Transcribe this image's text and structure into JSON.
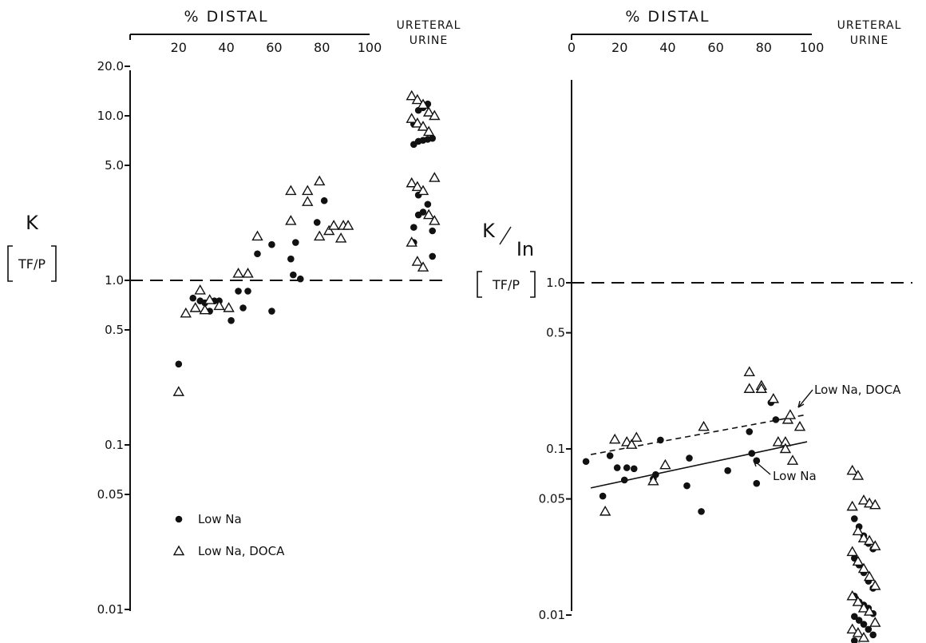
{
  "chart_data": [
    {
      "type": "scatter",
      "title": "",
      "top_axis_title": "% DISTAL",
      "ureteral_column_label": [
        "URETERAL",
        "URINE"
      ],
      "ylabel": "K",
      "ylabel_sub": "TF/P",
      "yscale": "log",
      "ylim": [
        0.01,
        20.0
      ],
      "xlim": [
        0,
        100
      ],
      "x_ticks": [
        20,
        40,
        60,
        80,
        100
      ],
      "y_ticks": [
        {
          "value": 20.0,
          "label": "20.0"
        },
        {
          "value": 10.0,
          "label": "10.0"
        },
        {
          "value": 5.0,
          "label": "5.0"
        },
        {
          "value": 1.0,
          "label": "1.0"
        },
        {
          "value": 0.5,
          "label": "0.5"
        },
        {
          "value": 0.1,
          "label": "0.1"
        },
        {
          "value": 0.05,
          "label": "0.05"
        },
        {
          "value": 0.01,
          "label": "0.01"
        }
      ],
      "reference_line": 1.0,
      "legend": [
        {
          "marker": "dot",
          "label": "Low  Na"
        },
        {
          "marker": "triangle",
          "label": "Low  Na,  DOCA"
        }
      ],
      "series": [
        {
          "name": "Low  Na",
          "marker": "dot",
          "points": [
            [
              20,
              0.31
            ],
            [
              26,
              0.78
            ],
            [
              29,
              0.75
            ],
            [
              31,
              0.73
            ],
            [
              33,
              0.65
            ],
            [
              35,
              0.75
            ],
            [
              37,
              0.75
            ],
            [
              42,
              0.57
            ],
            [
              45,
              0.86
            ],
            [
              47,
              0.68
            ],
            [
              49,
              0.86
            ],
            [
              53,
              1.45
            ],
            [
              59,
              1.65
            ],
            [
              59,
              0.65
            ],
            [
              67,
              1.35
            ],
            [
              68,
              1.08
            ],
            [
              69,
              1.7
            ],
            [
              71,
              1.02
            ],
            [
              78,
              2.25
            ],
            [
              81,
              3.05
            ]
          ],
          "ureteral": [
            6.7,
            7.0,
            7.1,
            7.2,
            7.3,
            8.9,
            10.8,
            11.2,
            11.8,
            2.0,
            2.1,
            2.5,
            2.6,
            2.9,
            1.4,
            1.7,
            3.3
          ]
        },
        {
          "name": "Low  Na,  DOCA",
          "marker": "triangle",
          "points": [
            [
              20,
              0.21
            ],
            [
              23,
              0.63
            ],
            [
              27,
              0.68
            ],
            [
              29,
              0.87
            ],
            [
              31,
              0.66
            ],
            [
              33,
              0.76
            ],
            [
              37,
              0.7
            ],
            [
              41,
              0.68
            ],
            [
              45,
              1.1
            ],
            [
              49,
              1.1
            ],
            [
              53,
              1.85
            ],
            [
              67,
              3.5
            ],
            [
              67,
              2.3
            ],
            [
              74,
              3.5
            ],
            [
              74,
              3.0
            ],
            [
              79,
              4.0
            ],
            [
              79,
              1.85
            ],
            [
              83,
              2.0
            ],
            [
              85,
              2.15
            ],
            [
              88,
              1.8
            ],
            [
              89,
              2.15
            ],
            [
              91,
              2.15
            ]
          ],
          "ureteral": [
            13.2,
            12.5,
            11.7,
            10.5,
            10.0,
            9.6,
            9.0,
            8.6,
            8.0,
            4.2,
            3.9,
            3.7,
            3.5,
            2.5,
            2.3,
            1.7,
            1.3,
            1.2
          ]
        }
      ]
    },
    {
      "type": "scatter",
      "title": "",
      "top_axis_title": "% DISTAL",
      "ureteral_column_label": [
        "URETERAL",
        "URINE"
      ],
      "ylabel": "K/In",
      "ylabel_main": "K",
      "ylabel_denominator": "In",
      "ylabel_sub": "TF/P",
      "yscale": "log",
      "ylim": [
        0.01,
        2.0
      ],
      "xlim": [
        0,
        100
      ],
      "x_ticks": [
        0,
        20,
        40,
        60,
        80,
        100
      ],
      "y_ticks": [
        {
          "value": 1.0,
          "label": "1.0"
        },
        {
          "value": 0.5,
          "label": "0.5"
        },
        {
          "value": 0.1,
          "label": "0.1"
        },
        {
          "value": 0.05,
          "label": "0.05"
        },
        {
          "value": 0.01,
          "label": "0.01"
        }
      ],
      "reference_line": 1.0,
      "fit_lines": [
        {
          "series": "Low  Na,  DOCA",
          "style": "dashed",
          "from": [
            0,
            0.088
          ],
          "to": [
            100,
            0.163
          ]
        },
        {
          "series": "Low  Na",
          "style": "solid",
          "from": [
            0,
            0.055
          ],
          "to": [
            100,
            0.112
          ]
        }
      ],
      "annotations": [
        {
          "text": "Low  Na,  DOCA",
          "points_to": "dashed regression line"
        },
        {
          "text": "Low  Na",
          "points_to": "solid regression line"
        }
      ],
      "series": [
        {
          "name": "Low  Na",
          "marker": "dot",
          "points": [
            [
              6,
              0.084
            ],
            [
              13,
              0.052
            ],
            [
              16,
              0.091
            ],
            [
              19,
              0.077
            ],
            [
              22,
              0.065
            ],
            [
              23,
              0.077
            ],
            [
              26,
              0.076
            ],
            [
              34,
              0.066
            ],
            [
              35,
              0.07
            ],
            [
              37,
              0.113
            ],
            [
              48,
              0.06
            ],
            [
              49,
              0.088
            ],
            [
              54,
              0.042
            ],
            [
              65,
              0.074
            ],
            [
              74,
              0.127
            ],
            [
              75,
              0.094
            ],
            [
              77,
              0.085
            ],
            [
              77,
              0.062
            ],
            [
              83,
              0.19
            ],
            [
              85,
              0.15
            ]
          ],
          "ureteral": [
            0.038,
            0.034,
            0.03,
            0.027,
            0.025,
            0.022,
            0.02,
            0.018,
            0.016,
            0.0145,
            0.013,
            0.012,
            0.0115,
            0.011,
            0.0102,
            0.0098,
            0.0093,
            0.0088,
            0.0082,
            0.0076,
            0.007,
            0.0065
          ]
        },
        {
          "name": "Low  Na,  DOCA",
          "marker": "triangle",
          "points": [
            [
              14,
              0.042
            ],
            [
              18,
              0.114
            ],
            [
              23,
              0.11
            ],
            [
              25,
              0.106
            ],
            [
              27,
              0.117
            ],
            [
              34,
              0.064
            ],
            [
              39,
              0.08
            ],
            [
              55,
              0.136
            ],
            [
              74,
              0.29
            ],
            [
              74,
              0.23
            ],
            [
              79,
              0.24
            ],
            [
              79,
              0.23
            ],
            [
              84,
              0.2
            ],
            [
              86,
              0.11
            ],
            [
              89,
              0.11
            ],
            [
              89,
              0.1
            ],
            [
              90,
              0.15
            ],
            [
              91,
              0.16
            ],
            [
              92,
              0.085
            ],
            [
              95,
              0.136
            ]
          ],
          "ureteral": [
            0.074,
            0.069,
            0.049,
            0.047,
            0.046,
            0.045,
            0.032,
            0.029,
            0.028,
            0.026,
            0.024,
            0.021,
            0.019,
            0.017,
            0.015,
            0.013,
            0.012,
            0.011,
            0.0105,
            0.009,
            0.0082,
            0.0078,
            0.0073
          ]
        }
      ]
    }
  ]
}
